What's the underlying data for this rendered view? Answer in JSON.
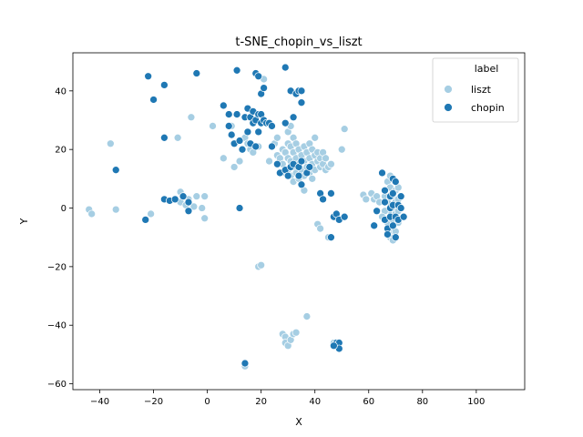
{
  "chart_data": {
    "type": "scatter",
    "title": "t-SNE_chopin_vs_liszt",
    "xlabel": "X",
    "ylabel": "Y",
    "xlim": [
      -50,
      118
    ],
    "ylim": [
      -62,
      53
    ],
    "xticks": [
      -40,
      -20,
      0,
      20,
      40,
      60,
      80,
      100
    ],
    "yticks": [
      -60,
      -40,
      -20,
      0,
      20,
      40
    ],
    "legend": {
      "title": "label",
      "placement": "top-right"
    },
    "colors": {
      "liszt": "#a6cee3",
      "chopin": "#1f78b4"
    },
    "series": [
      {
        "name": "liszt",
        "points": [
          [
            -44,
            -0.5
          ],
          [
            -43,
            -2
          ],
          [
            -36,
            22
          ],
          [
            -34,
            -0.5
          ],
          [
            -21,
            -2
          ],
          [
            -11,
            24
          ],
          [
            -10,
            5.5
          ],
          [
            -10,
            2
          ],
          [
            -8,
            1
          ],
          [
            -7,
            3
          ],
          [
            -5,
            0.5
          ],
          [
            -4,
            4
          ],
          [
            -2,
            0
          ],
          [
            -1,
            -3.5
          ],
          [
            -1,
            4
          ],
          [
            -6,
            31
          ],
          [
            2,
            28
          ],
          [
            6,
            17
          ],
          [
            9,
            28
          ],
          [
            10,
            14
          ],
          [
            12,
            16
          ],
          [
            14,
            24
          ],
          [
            15,
            22
          ],
          [
            16,
            20
          ],
          [
            17,
            19
          ],
          [
            19,
            21
          ],
          [
            20,
            39
          ],
          [
            21,
            44
          ],
          [
            19,
            -20
          ],
          [
            20,
            -19.5
          ],
          [
            23,
            16
          ],
          [
            24,
            21
          ],
          [
            25,
            22
          ],
          [
            26,
            24
          ],
          [
            26,
            18
          ],
          [
            27,
            17
          ],
          [
            28,
            20
          ],
          [
            28,
            15
          ],
          [
            29,
            19
          ],
          [
            29,
            12
          ],
          [
            30,
            26
          ],
          [
            30,
            22
          ],
          [
            30,
            17
          ],
          [
            30,
            13
          ],
          [
            31,
            28
          ],
          [
            31,
            21
          ],
          [
            31,
            16
          ],
          [
            31,
            11
          ],
          [
            32,
            24
          ],
          [
            32,
            19
          ],
          [
            32,
            14
          ],
          [
            32,
            9
          ],
          [
            33,
            22
          ],
          [
            33,
            17
          ],
          [
            33,
            12
          ],
          [
            34,
            20
          ],
          [
            34,
            15
          ],
          [
            34,
            10
          ],
          [
            35,
            18
          ],
          [
            35,
            13
          ],
          [
            36,
            21
          ],
          [
            36,
            16
          ],
          [
            36,
            11
          ],
          [
            36,
            6
          ],
          [
            37,
            19
          ],
          [
            37,
            14
          ],
          [
            38,
            22
          ],
          [
            38,
            17
          ],
          [
            38,
            12
          ],
          [
            39,
            20
          ],
          [
            39,
            15
          ],
          [
            39,
            10
          ],
          [
            40,
            24
          ],
          [
            40,
            18
          ],
          [
            40,
            13
          ],
          [
            41,
            16
          ],
          [
            41,
            19
          ],
          [
            42,
            14
          ],
          [
            42,
            17
          ],
          [
            43,
            19
          ],
          [
            43,
            15
          ],
          [
            44,
            13
          ],
          [
            44,
            17
          ],
          [
            45,
            14
          ],
          [
            46,
            15
          ],
          [
            41,
            -5.5
          ],
          [
            42,
            -7
          ],
          [
            45,
            -10
          ],
          [
            28,
            -43
          ],
          [
            29,
            -44
          ],
          [
            29,
            -46
          ],
          [
            30,
            -47
          ],
          [
            31,
            -45
          ],
          [
            32,
            -43
          ],
          [
            33,
            -42.5
          ],
          [
            37,
            -37
          ],
          [
            14,
            -54
          ],
          [
            50,
            20
          ],
          [
            51,
            27
          ],
          [
            58,
            4.5
          ],
          [
            59,
            3
          ],
          [
            61,
            5
          ],
          [
            62,
            3
          ],
          [
            63,
            4
          ],
          [
            64,
            2
          ],
          [
            66,
            4
          ],
          [
            67,
            9
          ],
          [
            67,
            2
          ],
          [
            67,
            -5
          ],
          [
            68,
            11
          ],
          [
            68,
            7
          ],
          [
            68,
            -1
          ],
          [
            68,
            -7
          ],
          [
            69,
            4
          ],
          [
            69,
            0
          ],
          [
            69,
            -4
          ],
          [
            69,
            -9
          ],
          [
            70,
            6
          ],
          [
            70,
            2
          ],
          [
            70,
            -2
          ],
          [
            70,
            -8
          ],
          [
            71,
            7
          ],
          [
            71,
            3
          ],
          [
            71,
            -1
          ],
          [
            71,
            -5
          ],
          [
            66,
            -1
          ],
          [
            65,
            -3
          ],
          [
            68,
            -10
          ],
          [
            69,
            -11
          ],
          [
            48,
            -47
          ],
          [
            49,
            -48
          ],
          [
            47,
            -46
          ]
        ]
      },
      {
        "name": "chopin",
        "points": [
          [
            -34,
            13
          ],
          [
            -23,
            -4
          ],
          [
            -22,
            45
          ],
          [
            -20,
            37
          ],
          [
            -16,
            42
          ],
          [
            -16,
            24
          ],
          [
            -16,
            3
          ],
          [
            -14,
            2.5
          ],
          [
            -12,
            3
          ],
          [
            -9,
            4
          ],
          [
            -7,
            2
          ],
          [
            -4,
            46
          ],
          [
            -7,
            -1
          ],
          [
            6,
            35
          ],
          [
            8,
            32
          ],
          [
            8,
            28
          ],
          [
            9,
            25
          ],
          [
            10,
            22
          ],
          [
            11,
            32
          ],
          [
            11,
            47
          ],
          [
            12,
            23
          ],
          [
            12,
            0
          ],
          [
            13,
            20
          ],
          [
            14,
            31
          ],
          [
            15,
            34
          ],
          [
            15,
            26
          ],
          [
            16,
            31
          ],
          [
            16,
            22
          ],
          [
            17,
            33
          ],
          [
            17,
            29
          ],
          [
            18,
            46
          ],
          [
            18,
            30
          ],
          [
            18,
            21
          ],
          [
            19,
            45
          ],
          [
            19,
            32
          ],
          [
            19,
            26
          ],
          [
            20,
            32
          ],
          [
            20,
            29
          ],
          [
            20,
            39
          ],
          [
            21,
            41
          ],
          [
            21,
            30
          ],
          [
            22,
            29
          ],
          [
            23,
            29
          ],
          [
            24,
            28
          ],
          [
            24,
            21
          ],
          [
            29,
            48
          ],
          [
            29,
            29
          ],
          [
            31,
            40
          ],
          [
            32,
            31
          ],
          [
            33,
            39
          ],
          [
            34,
            40
          ],
          [
            35,
            40
          ],
          [
            35,
            36
          ],
          [
            26,
            15
          ],
          [
            27,
            12
          ],
          [
            29,
            13
          ],
          [
            30,
            11
          ],
          [
            31,
            14
          ],
          [
            32,
            15
          ],
          [
            34,
            14
          ],
          [
            34,
            11
          ],
          [
            35,
            16
          ],
          [
            35,
            8
          ],
          [
            37,
            12
          ],
          [
            38,
            14
          ],
          [
            42,
            5
          ],
          [
            43,
            3
          ],
          [
            46,
            5
          ],
          [
            46,
            -10
          ],
          [
            47,
            -3
          ],
          [
            48,
            -2
          ],
          [
            49,
            -4
          ],
          [
            51,
            -3
          ],
          [
            48,
            -46
          ],
          [
            49,
            -46
          ],
          [
            49,
            -48
          ],
          [
            47,
            -47
          ],
          [
            14,
            -53
          ],
          [
            62,
            -6
          ],
          [
            63,
            -1
          ],
          [
            65,
            12
          ],
          [
            66,
            6
          ],
          [
            66,
            2
          ],
          [
            66,
            -4
          ],
          [
            67,
            -7
          ],
          [
            67,
            -9
          ],
          [
            68,
            4
          ],
          [
            68,
            0
          ],
          [
            68,
            -3
          ],
          [
            69,
            10
          ],
          [
            69,
            5
          ],
          [
            69,
            1
          ],
          [
            69,
            -6
          ],
          [
            70,
            9
          ],
          [
            70,
            -3
          ],
          [
            70,
            -10
          ],
          [
            71,
            1
          ],
          [
            71,
            -4
          ],
          [
            72,
            4
          ],
          [
            72,
            0
          ],
          [
            73,
            -3
          ]
        ]
      }
    ]
  }
}
